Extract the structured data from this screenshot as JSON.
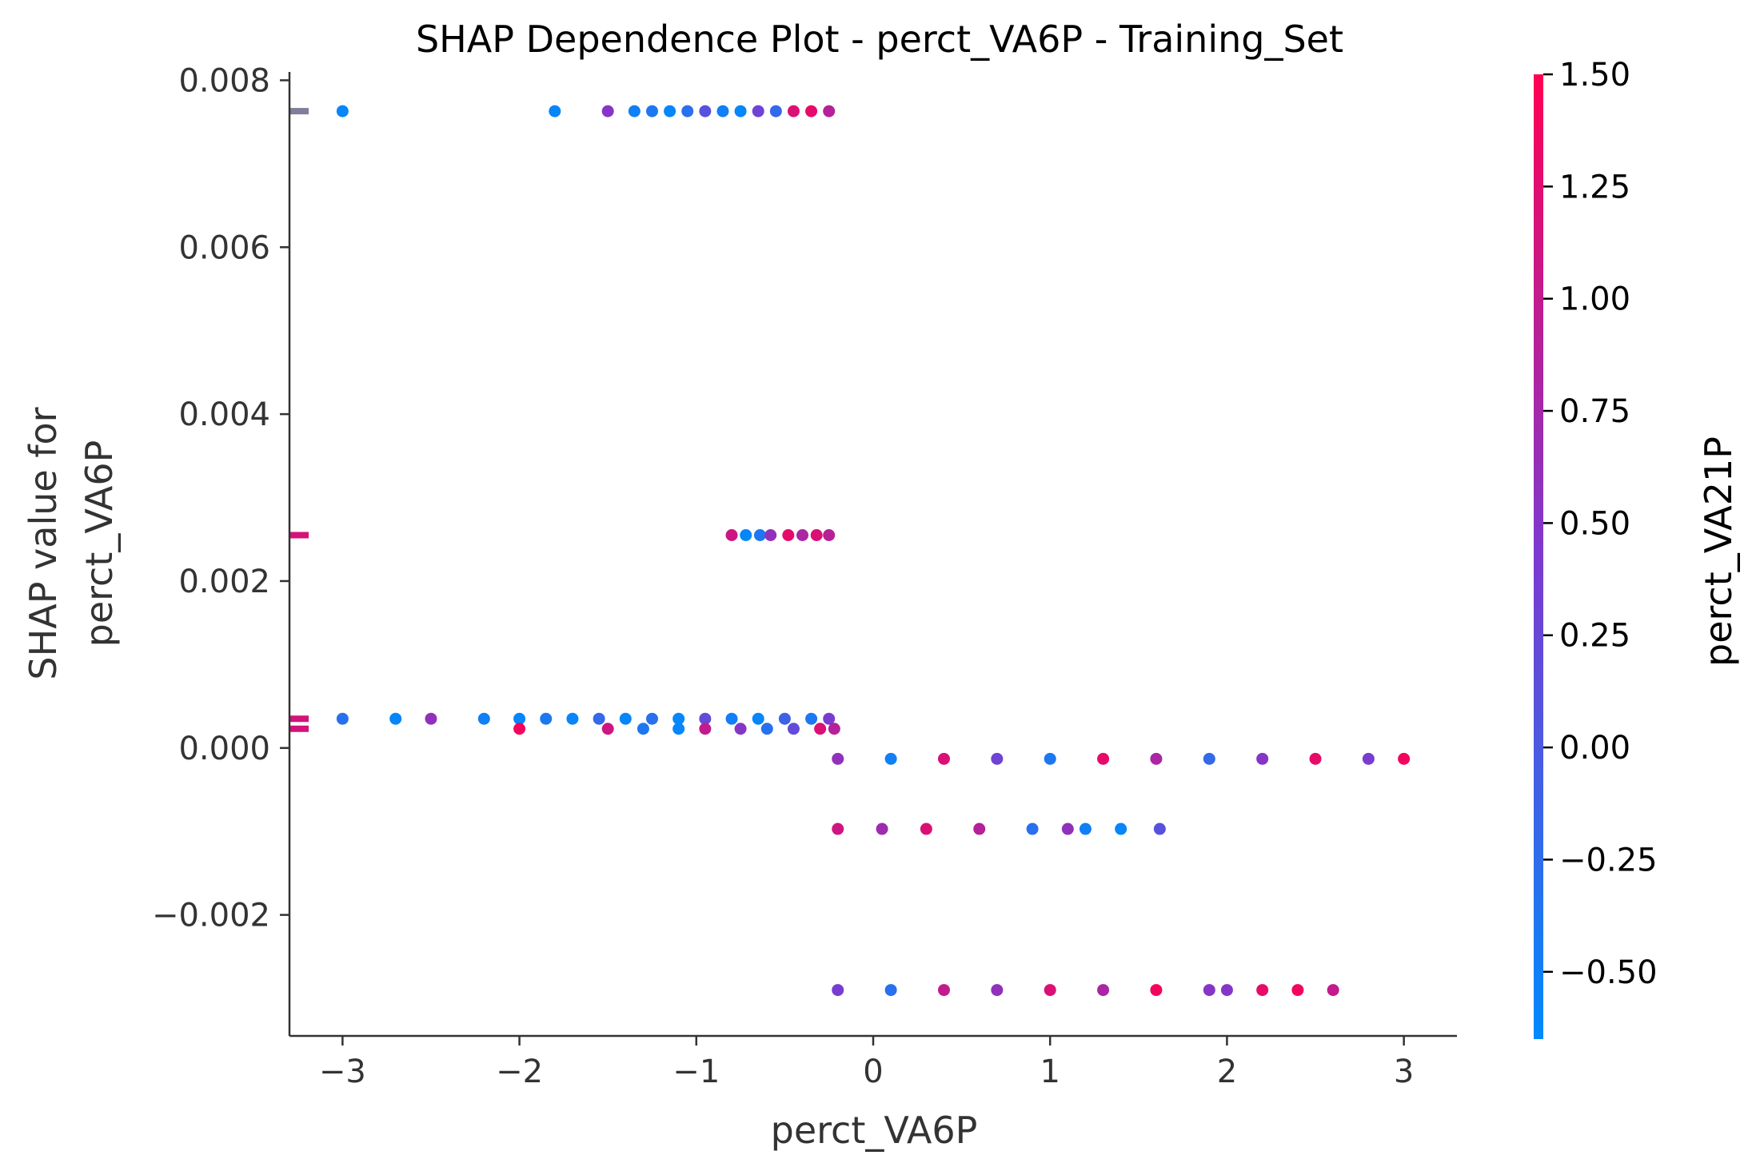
{
  "chart_data": {
    "type": "scatter",
    "title": "SHAP Dependence Plot - perct_VA6P - Training_Set",
    "xlabel": "perct_VA6P",
    "ylabel_line1": "SHAP value for",
    "ylabel_line2": "perct_VA6P",
    "xlim": [
      -3.3,
      3.3
    ],
    "ylim": [
      -0.00345,
      0.0081
    ],
    "xticks": [
      -3,
      -2,
      -1,
      0,
      1,
      2,
      3
    ],
    "xtick_labels": [
      "−3",
      "−2",
      "−1",
      "0",
      "1",
      "2",
      "3"
    ],
    "yticks": [
      0.008,
      0.006,
      0.004,
      0.002,
      0.0,
      -0.002
    ],
    "ytick_labels": [
      "0.008",
      "0.006",
      "0.004",
      "0.002",
      "0.000",
      "−0.002"
    ],
    "colorbar": {
      "label": "perct_VA21P",
      "range": [
        -0.65,
        1.5
      ],
      "ticks": [
        1.5,
        1.25,
        1.0,
        0.75,
        0.5,
        0.25,
        0.0,
        -0.25,
        -0.5
      ],
      "tick_labels": [
        "1.50",
        "1.25",
        "1.00",
        "0.75",
        "0.50",
        "0.25",
        "0.00",
        "−0.25",
        "−0.50"
      ],
      "colors": {
        "low": "#008afb",
        "mid": "#7c3ad0",
        "high": "#ff0052"
      }
    },
    "rug_marks": [
      {
        "y": 0.00763,
        "color": "#7f7f99"
      },
      {
        "y": 0.00255,
        "color": "#d3127a"
      },
      {
        "y": 0.00035,
        "color": "#d3127a"
      },
      {
        "y": 0.00023,
        "color": "#d3127a"
      }
    ],
    "series": [
      {
        "points": [
          {
            "x": -3.0,
            "y": 0.00763,
            "c": -0.6
          },
          {
            "x": -1.8,
            "y": 0.00763,
            "c": -0.6
          },
          {
            "x": -1.5,
            "y": 0.00763,
            "c": 0.5
          },
          {
            "x": -1.35,
            "y": 0.00763,
            "c": -0.5
          },
          {
            "x": -1.25,
            "y": 0.00763,
            "c": -0.4
          },
          {
            "x": -1.15,
            "y": 0.00763,
            "c": -0.6
          },
          {
            "x": -1.05,
            "y": 0.00763,
            "c": -0.3
          },
          {
            "x": -0.95,
            "y": 0.00763,
            "c": 0.1
          },
          {
            "x": -0.85,
            "y": 0.00763,
            "c": -0.5
          },
          {
            "x": -0.75,
            "y": 0.00763,
            "c": -0.6
          },
          {
            "x": -0.65,
            "y": 0.00763,
            "c": 0.3
          },
          {
            "x": -0.55,
            "y": 0.00763,
            "c": -0.2
          },
          {
            "x": -0.45,
            "y": 0.00763,
            "c": 1.2
          },
          {
            "x": -0.35,
            "y": 0.00763,
            "c": 1.3
          },
          {
            "x": -0.25,
            "y": 0.00763,
            "c": 0.9
          },
          {
            "x": -0.8,
            "y": 0.00255,
            "c": 1.1
          },
          {
            "x": -0.72,
            "y": 0.00255,
            "c": -0.6
          },
          {
            "x": -0.64,
            "y": 0.00255,
            "c": -0.4
          },
          {
            "x": -0.58,
            "y": 0.00255,
            "c": 0.6
          },
          {
            "x": -0.48,
            "y": 0.00255,
            "c": 1.3
          },
          {
            "x": -0.4,
            "y": 0.00255,
            "c": 0.8
          },
          {
            "x": -0.32,
            "y": 0.00255,
            "c": 1.2
          },
          {
            "x": -0.25,
            "y": 0.00255,
            "c": 0.9
          },
          {
            "x": -3.0,
            "y": 0.00035,
            "c": -0.3
          },
          {
            "x": -2.7,
            "y": 0.00035,
            "c": -0.6
          },
          {
            "x": -2.5,
            "y": 0.00035,
            "c": 0.6
          },
          {
            "x": -2.2,
            "y": 0.00035,
            "c": -0.5
          },
          {
            "x": -2.0,
            "y": 0.00035,
            "c": -0.6
          },
          {
            "x": -1.85,
            "y": 0.00035,
            "c": -0.4
          },
          {
            "x": -1.7,
            "y": 0.00035,
            "c": -0.6
          },
          {
            "x": -1.55,
            "y": 0.00035,
            "c": -0.2
          },
          {
            "x": -1.4,
            "y": 0.00035,
            "c": -0.6
          },
          {
            "x": -1.25,
            "y": 0.00035,
            "c": -0.3
          },
          {
            "x": -1.1,
            "y": 0.00035,
            "c": -0.6
          },
          {
            "x": -0.95,
            "y": 0.00035,
            "c": 0.2
          },
          {
            "x": -0.8,
            "y": 0.00035,
            "c": -0.5
          },
          {
            "x": -0.65,
            "y": 0.00035,
            "c": -0.6
          },
          {
            "x": -0.5,
            "y": 0.00035,
            "c": -0.1
          },
          {
            "x": -0.35,
            "y": 0.00035,
            "c": -0.4
          },
          {
            "x": -0.25,
            "y": 0.00035,
            "c": 0.4
          },
          {
            "x": -2.0,
            "y": 0.00023,
            "c": 1.4
          },
          {
            "x": -1.5,
            "y": 0.00023,
            "c": 1.1
          },
          {
            "x": -1.3,
            "y": 0.00023,
            "c": -0.4
          },
          {
            "x": -1.1,
            "y": 0.00023,
            "c": -0.6
          },
          {
            "x": -0.95,
            "y": 0.00023,
            "c": 1.0
          },
          {
            "x": -0.75,
            "y": 0.00023,
            "c": 0.5
          },
          {
            "x": -0.6,
            "y": 0.00023,
            "c": -0.3
          },
          {
            "x": -0.45,
            "y": 0.00023,
            "c": 0.2
          },
          {
            "x": -0.3,
            "y": 0.00023,
            "c": 1.2
          },
          {
            "x": -0.22,
            "y": 0.00023,
            "c": 0.9
          },
          {
            "x": -0.2,
            "y": -0.00013,
            "c": 0.6
          },
          {
            "x": 0.1,
            "y": -0.00013,
            "c": -0.5
          },
          {
            "x": 0.4,
            "y": -0.00013,
            "c": 1.2
          },
          {
            "x": 0.7,
            "y": -0.00013,
            "c": 0.3
          },
          {
            "x": 1.0,
            "y": -0.00013,
            "c": -0.4
          },
          {
            "x": 1.3,
            "y": -0.00013,
            "c": 1.3
          },
          {
            "x": 1.6,
            "y": -0.00013,
            "c": 0.8
          },
          {
            "x": 1.9,
            "y": -0.00013,
            "c": -0.2
          },
          {
            "x": 2.2,
            "y": -0.00013,
            "c": 0.5
          },
          {
            "x": 2.5,
            "y": -0.00013,
            "c": 1.3
          },
          {
            "x": 2.8,
            "y": -0.00013,
            "c": 0.4
          },
          {
            "x": 3.0,
            "y": -0.00013,
            "c": 1.4
          },
          {
            "x": -0.2,
            "y": -0.00097,
            "c": 1.1
          },
          {
            "x": 0.05,
            "y": -0.00097,
            "c": 0.7
          },
          {
            "x": 0.3,
            "y": -0.00097,
            "c": 1.2
          },
          {
            "x": 0.6,
            "y": -0.00097,
            "c": 0.9
          },
          {
            "x": 0.9,
            "y": -0.00097,
            "c": -0.3
          },
          {
            "x": 1.1,
            "y": -0.00097,
            "c": 0.6
          },
          {
            "x": 1.2,
            "y": -0.00097,
            "c": -0.5
          },
          {
            "x": 1.4,
            "y": -0.00097,
            "c": -0.6
          },
          {
            "x": 1.62,
            "y": -0.00097,
            "c": 0.1
          },
          {
            "x": -0.2,
            "y": -0.0029,
            "c": 0.4
          },
          {
            "x": 0.1,
            "y": -0.0029,
            "c": -0.3
          },
          {
            "x": 0.4,
            "y": -0.0029,
            "c": 1.0
          },
          {
            "x": 0.7,
            "y": -0.0029,
            "c": 0.6
          },
          {
            "x": 1.0,
            "y": -0.0029,
            "c": 1.2
          },
          {
            "x": 1.3,
            "y": -0.0029,
            "c": 0.8
          },
          {
            "x": 1.6,
            "y": -0.0029,
            "c": 1.4
          },
          {
            "x": 1.9,
            "y": -0.0029,
            "c": 0.5
          },
          {
            "x": 2.0,
            "y": -0.0029,
            "c": 0.5
          },
          {
            "x": 2.2,
            "y": -0.0029,
            "c": 1.3
          },
          {
            "x": 2.4,
            "y": -0.0029,
            "c": 1.4
          },
          {
            "x": 2.6,
            "y": -0.0029,
            "c": 1.0
          }
        ]
      }
    ]
  }
}
